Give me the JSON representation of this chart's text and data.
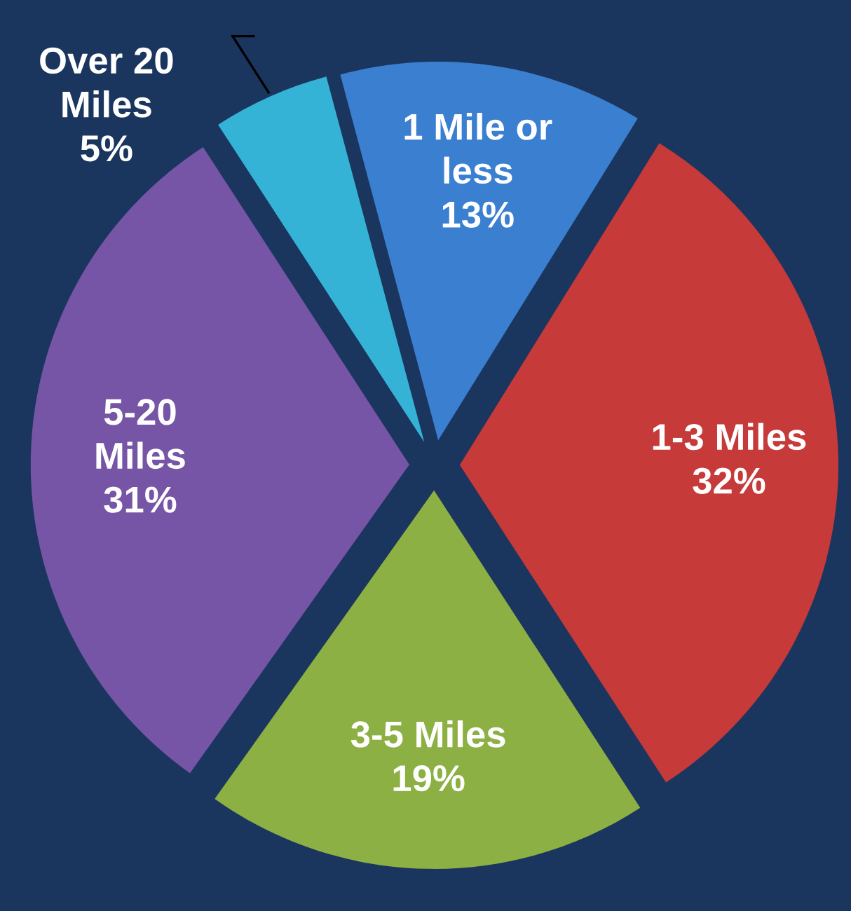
{
  "chart_data": {
    "type": "pie",
    "categories": [
      "1 Mile or\nless",
      "1-3 Miles",
      "3-5 Miles",
      "5-20\nMiles",
      "Over 20\nMiles"
    ],
    "values": [
      13,
      32,
      19,
      31,
      5
    ],
    "value_labels": [
      "13%",
      "32%",
      "19%",
      "31%",
      "5%"
    ],
    "colors": [
      "#3b7fd0",
      "#c63a3a",
      "#8cb043",
      "#7755a6",
      "#35b3d6"
    ]
  }
}
